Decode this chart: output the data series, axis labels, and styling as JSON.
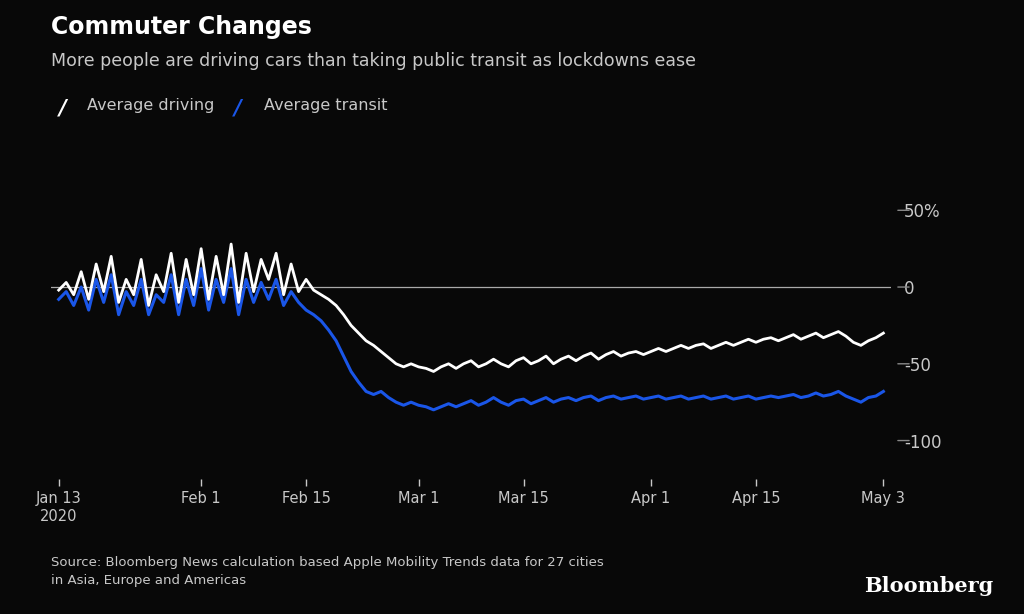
{
  "title_bold": "Commuter Changes",
  "title_sub": "More people are driving cars than taking public transit as lockdowns ease",
  "legend_driving": "Average driving",
  "legend_transit": "Average transit",
  "source": "Source: Bloomberg News calculation based Apple Mobility Trends data for 27 cities\nin Asia, Europe and Americas",
  "watermark": "Bloomberg",
  "background_color": "#080808",
  "text_color": "#c8c8c8",
  "driving_color": "#ffffff",
  "transit_color": "#1a56e8",
  "yticks": [
    50,
    0,
    -50,
    -100
  ],
  "ytick_labels": [
    "50%",
    "0",
    "-50",
    "-100"
  ],
  "ylim": [
    -125,
    75
  ],
  "xtick_labels": [
    "Jan 13\n2020",
    "Feb 1",
    "Feb 15",
    "Mar 1",
    "Mar 15",
    "Apr 1",
    "Apr 15",
    "May 3"
  ],
  "driving_y": [
    -2,
    3,
    -5,
    10,
    -8,
    15,
    -3,
    20,
    -10,
    5,
    -5,
    18,
    -12,
    8,
    -3,
    22,
    -10,
    18,
    -5,
    25,
    -8,
    20,
    -5,
    28,
    -10,
    22,
    -3,
    18,
    5,
    22,
    -5,
    15,
    -3,
    5,
    -2,
    -5,
    -8,
    -12,
    -18,
    -25,
    -30,
    -35,
    -38,
    -42,
    -46,
    -50,
    -52,
    -50,
    -52,
    -53,
    -55,
    -52,
    -50,
    -53,
    -50,
    -48,
    -52,
    -50,
    -47,
    -50,
    -52,
    -48,
    -46,
    -50,
    -48,
    -45,
    -50,
    -47,
    -45,
    -48,
    -45,
    -43,
    -47,
    -44,
    -42,
    -45,
    -43,
    -42,
    -44,
    -42,
    -40,
    -42,
    -40,
    -38,
    -40,
    -38,
    -37,
    -40,
    -38,
    -36,
    -38,
    -36,
    -34,
    -36,
    -34,
    -33,
    -35,
    -33,
    -31,
    -34,
    -32,
    -30,
    -33,
    -31,
    -29,
    -32,
    -36,
    -38,
    -35,
    -33,
    -30
  ],
  "transit_y": [
    -8,
    -3,
    -12,
    0,
    -15,
    5,
    -10,
    8,
    -18,
    -3,
    -12,
    5,
    -18,
    -5,
    -10,
    8,
    -18,
    5,
    -12,
    12,
    -15,
    5,
    -10,
    12,
    -18,
    5,
    -10,
    3,
    -8,
    5,
    -12,
    -3,
    -10,
    -15,
    -18,
    -22,
    -28,
    -35,
    -45,
    -55,
    -62,
    -68,
    -70,
    -68,
    -72,
    -75,
    -77,
    -75,
    -77,
    -78,
    -80,
    -78,
    -76,
    -78,
    -76,
    -74,
    -77,
    -75,
    -72,
    -75,
    -77,
    -74,
    -73,
    -76,
    -74,
    -72,
    -75,
    -73,
    -72,
    -74,
    -72,
    -71,
    -74,
    -72,
    -71,
    -73,
    -72,
    -71,
    -73,
    -72,
    -71,
    -73,
    -72,
    -71,
    -73,
    -72,
    -71,
    -73,
    -72,
    -71,
    -73,
    -72,
    -71,
    -73,
    -72,
    -71,
    -72,
    -71,
    -70,
    -72,
    -71,
    -69,
    -71,
    -70,
    -68,
    -71,
    -73,
    -75,
    -72,
    -71,
    -68
  ]
}
